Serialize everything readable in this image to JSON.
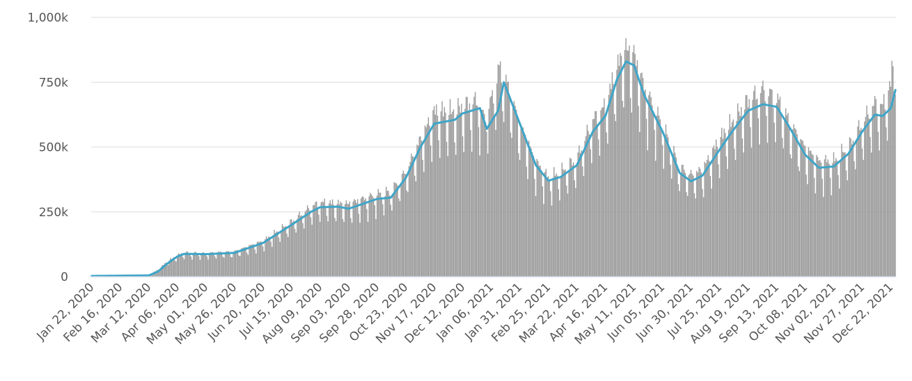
{
  "chart_data": {
    "type": "bar",
    "title": "",
    "xlabel": "",
    "ylabel": "",
    "ylim": [
      0,
      1000000
    ],
    "grid": true,
    "legend": "none",
    "y_ticks": [
      {
        "value": 0,
        "label": "0"
      },
      {
        "value": 250000,
        "label": "250k"
      },
      {
        "value": 500000,
        "label": "500k"
      },
      {
        "value": 750000,
        "label": "750k"
      },
      {
        "value": 1000000,
        "label": "1,000k"
      }
    ],
    "x_start": "2020-01-22",
    "x_end": "2021-12-26",
    "x_ticks": [
      "Jan 22, 2020",
      "Feb 16, 2020",
      "Mar 12, 2020",
      "Apr 06, 2020",
      "May 01, 2020",
      "May 26, 2020",
      "Jun 20, 2020",
      "Jul 15, 2020",
      "Aug 09, 2020",
      "Sep 03, 2020",
      "Sep 28, 2020",
      "Oct 23, 2020",
      "Nov 17, 2020",
      "Dec 12, 2020",
      "Jan 06, 2021",
      "Jan 31, 2021",
      "Feb 25, 2021",
      "Mar 22, 2021",
      "Apr 16, 2021",
      "May 11, 2021",
      "Jun 05, 2021",
      "Jun 30, 2021",
      "Jul 25, 2021",
      "Aug 19, 2021",
      "Sep 13, 2021",
      "Oct 08, 2021",
      "Nov 02, 2021",
      "Nov 27, 2021",
      "Dec 22, 2021"
    ],
    "series": [
      {
        "type": "bar",
        "color": "#999999",
        "anchors": [
          [
            "2020-01-22",
            500
          ],
          [
            "2020-02-05",
            3000
          ],
          [
            "2020-02-16",
            3500
          ],
          [
            "2020-03-05",
            2000
          ],
          [
            "2020-03-12",
            6000
          ],
          [
            "2020-03-20",
            25000
          ],
          [
            "2020-03-28",
            55000
          ],
          [
            "2020-04-06",
            78000
          ],
          [
            "2020-04-12",
            88000
          ],
          [
            "2020-05-01",
            85000
          ],
          [
            "2020-05-26",
            92000
          ],
          [
            "2020-06-20",
            130000
          ],
          [
            "2020-07-15",
            200000
          ],
          [
            "2020-08-01",
            255000
          ],
          [
            "2020-08-09",
            270000
          ],
          [
            "2020-09-03",
            265000
          ],
          [
            "2020-09-28",
            300000
          ],
          [
            "2020-10-10",
            310000
          ],
          [
            "2020-10-23",
            380000
          ],
          [
            "2020-11-05",
            500000
          ],
          [
            "2020-11-17",
            600000
          ],
          [
            "2020-12-05",
            600000
          ],
          [
            "2020-12-12",
            620000
          ],
          [
            "2020-12-25",
            640000
          ],
          [
            "2020-12-30",
            580000
          ],
          [
            "2021-01-06",
            640000
          ],
          [
            "2021-01-13",
            760000
          ],
          [
            "2021-01-20",
            700000
          ],
          [
            "2021-01-31",
            560000
          ],
          [
            "2021-02-14",
            420000
          ],
          [
            "2021-02-25",
            360000
          ],
          [
            "2021-03-08",
            380000
          ],
          [
            "2021-03-22",
            430000
          ],
          [
            "2021-04-05",
            570000
          ],
          [
            "2021-04-16",
            620000
          ],
          [
            "2021-04-25",
            750000
          ],
          [
            "2021-05-03",
            830000
          ],
          [
            "2021-05-11",
            810000
          ],
          [
            "2021-05-20",
            690000
          ],
          [
            "2021-06-05",
            550000
          ],
          [
            "2021-06-20",
            400000
          ],
          [
            "2021-06-30",
            370000
          ],
          [
            "2021-07-10",
            390000
          ],
          [
            "2021-07-25",
            500000
          ],
          [
            "2021-08-05",
            560000
          ],
          [
            "2021-08-19",
            640000
          ],
          [
            "2021-09-01",
            680000
          ],
          [
            "2021-09-13",
            650000
          ],
          [
            "2021-09-25",
            560000
          ],
          [
            "2021-10-08",
            470000
          ],
          [
            "2021-10-20",
            420000
          ],
          [
            "2021-11-02",
            420000
          ],
          [
            "2021-11-15",
            470000
          ],
          [
            "2021-11-27",
            560000
          ],
          [
            "2021-12-08",
            630000
          ],
          [
            "2021-12-15",
            620000
          ],
          [
            "2021-12-22",
            700000
          ],
          [
            "2021-12-26",
            880000
          ]
        ]
      },
      {
        "type": "line",
        "color": "#3ea5c8",
        "anchors": [
          [
            "2020-01-22",
            3000
          ],
          [
            "2020-02-16",
            4000
          ],
          [
            "2020-03-12",
            5000
          ],
          [
            "2020-03-20",
            20000
          ],
          [
            "2020-03-28",
            50000
          ],
          [
            "2020-04-06",
            78000
          ],
          [
            "2020-04-12",
            88000
          ],
          [
            "2020-05-01",
            87000
          ],
          [
            "2020-05-26",
            92000
          ],
          [
            "2020-06-20",
            130000
          ],
          [
            "2020-07-15",
            200000
          ],
          [
            "2020-08-01",
            250000
          ],
          [
            "2020-08-09",
            268000
          ],
          [
            "2020-08-25",
            270000
          ],
          [
            "2020-09-03",
            262000
          ],
          [
            "2020-09-28",
            300000
          ],
          [
            "2020-10-10",
            305000
          ],
          [
            "2020-10-23",
            380000
          ],
          [
            "2020-11-05",
            500000
          ],
          [
            "2020-11-17",
            590000
          ],
          [
            "2020-12-05",
            605000
          ],
          [
            "2020-12-12",
            630000
          ],
          [
            "2020-12-27",
            650000
          ],
          [
            "2021-01-02",
            570000
          ],
          [
            "2021-01-12",
            640000
          ],
          [
            "2021-01-17",
            750000
          ],
          [
            "2021-01-31",
            590000
          ],
          [
            "2021-02-14",
            430000
          ],
          [
            "2021-02-25",
            370000
          ],
          [
            "2021-03-08",
            385000
          ],
          [
            "2021-03-22",
            430000
          ],
          [
            "2021-04-05",
            560000
          ],
          [
            "2021-04-16",
            620000
          ],
          [
            "2021-04-26",
            760000
          ],
          [
            "2021-05-04",
            830000
          ],
          [
            "2021-05-11",
            815000
          ],
          [
            "2021-05-20",
            700000
          ],
          [
            "2021-06-05",
            560000
          ],
          [
            "2021-06-20",
            400000
          ],
          [
            "2021-06-30",
            368000
          ],
          [
            "2021-07-10",
            390000
          ],
          [
            "2021-07-25",
            490000
          ],
          [
            "2021-08-05",
            560000
          ],
          [
            "2021-08-19",
            640000
          ],
          [
            "2021-09-01",
            665000
          ],
          [
            "2021-09-13",
            655000
          ],
          [
            "2021-09-25",
            570000
          ],
          [
            "2021-10-08",
            470000
          ],
          [
            "2021-10-20",
            420000
          ],
          [
            "2021-11-02",
            425000
          ],
          [
            "2021-11-15",
            475000
          ],
          [
            "2021-11-27",
            560000
          ],
          [
            "2021-12-08",
            625000
          ],
          [
            "2021-12-15",
            620000
          ],
          [
            "2021-12-22",
            650000
          ],
          [
            "2021-12-26",
            720000
          ]
        ]
      }
    ]
  }
}
